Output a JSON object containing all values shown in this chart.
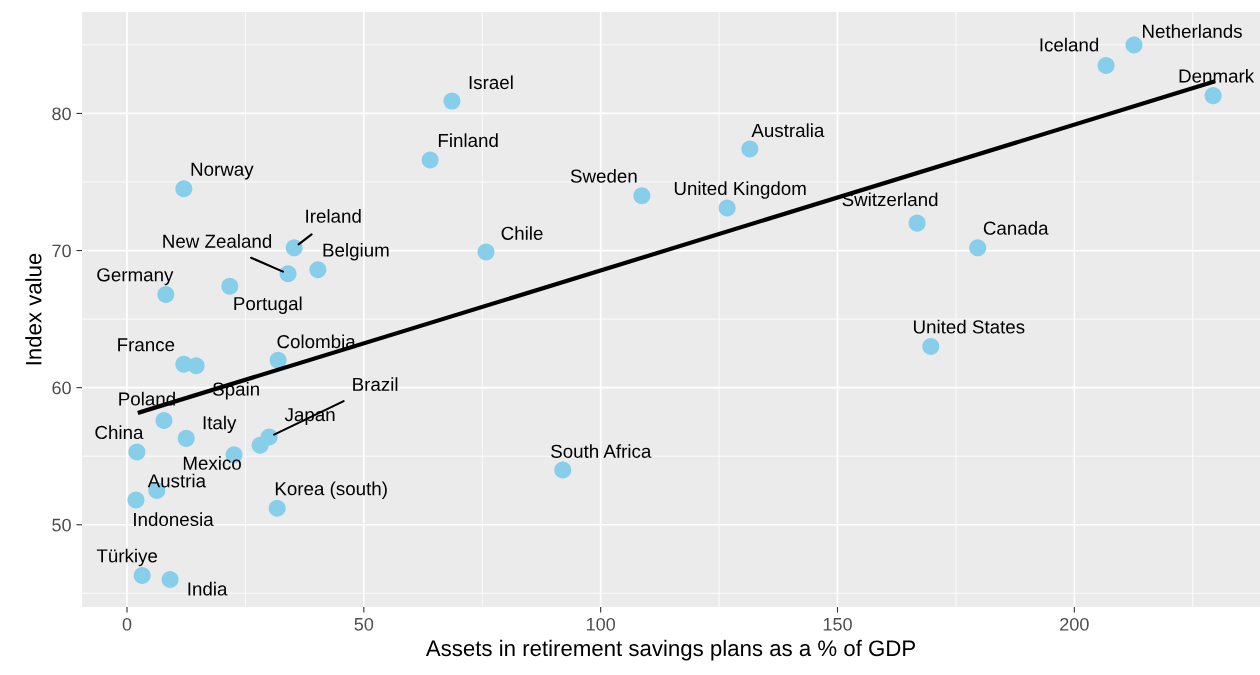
{
  "chart_data": {
    "type": "scatter",
    "xlabel": "Assets in retirement savings plans as a % of GDP",
    "ylabel": "Index value",
    "xlim": [
      -9.5,
      239.2
    ],
    "ylim": [
      44.0,
      87.4
    ],
    "xticks": [
      0,
      50,
      100,
      150,
      200
    ],
    "yticks": [
      50,
      60,
      70,
      80
    ],
    "grid": true,
    "marker": "circle",
    "series": [
      {
        "color": "#87ceeb",
        "x": [
          212.6,
          206.7,
          229.3,
          68.6,
          131.5,
          64.0,
          12.0,
          108.7,
          126.7,
          166.8,
          35.3,
          179.6,
          75.8,
          34.0,
          40.3,
          21.7,
          8.2,
          169.7,
          31.9,
          12.0,
          14.6,
          7.8,
          12.5,
          30.0,
          28.1,
          2.1,
          22.6,
          92.0,
          6.3,
          1.9,
          31.7,
          3.2,
          9.1
        ],
        "values": [
          85.0,
          83.5,
          81.3,
          80.9,
          77.4,
          76.6,
          74.5,
          74.0,
          73.1,
          72.0,
          70.2,
          70.2,
          69.9,
          68.3,
          68.6,
          67.4,
          66.8,
          63.0,
          62.0,
          61.7,
          61.6,
          57.6,
          56.3,
          56.4,
          55.8,
          55.3,
          55.1,
          54.0,
          52.5,
          51.8,
          51.2,
          46.3,
          46.0
        ]
      },
      {
        "type": "line",
        "marker": "none",
        "color": "#000000",
        "x": [
          2.7,
          229.3
        ],
        "values": [
          58.2,
          82.3
        ]
      }
    ],
    "annotations": [
      {
        "text": "Netherlands",
        "x": 212.6,
        "y": 85.0
      },
      {
        "text": "Iceland",
        "x": 206.7,
        "y": 83.5
      },
      {
        "text": "Denmark",
        "x": 229.3,
        "y": 81.3
      },
      {
        "text": "Israel",
        "x": 68.6,
        "y": 80.9
      },
      {
        "text": "Australia",
        "x": 131.5,
        "y": 77.4
      },
      {
        "text": "Finland",
        "x": 64.0,
        "y": 76.6
      },
      {
        "text": "Norway",
        "x": 12.0,
        "y": 74.5
      },
      {
        "text": "Sweden",
        "x": 108.7,
        "y": 74.0
      },
      {
        "text": "United Kingdom",
        "x": 126.7,
        "y": 73.1
      },
      {
        "text": "Switzerland",
        "x": 166.8,
        "y": 72.0
      },
      {
        "text": "Ireland",
        "x": 35.3,
        "y": 70.2
      },
      {
        "text": "Canada",
        "x": 179.6,
        "y": 70.2
      },
      {
        "text": "Chile",
        "x": 75.8,
        "y": 69.9
      },
      {
        "text": "New Zealand",
        "x": 34.0,
        "y": 68.3
      },
      {
        "text": "Belgium",
        "x": 40.3,
        "y": 68.6
      },
      {
        "text": "Portugal",
        "x": 21.7,
        "y": 67.4
      },
      {
        "text": "Germany",
        "x": 8.2,
        "y": 66.8
      },
      {
        "text": "United States",
        "x": 169.7,
        "y": 63.0
      },
      {
        "text": "Colombia",
        "x": 31.9,
        "y": 62.0
      },
      {
        "text": "France",
        "x": 12.0,
        "y": 61.7
      },
      {
        "text": "Spain",
        "x": 14.6,
        "y": 61.6
      },
      {
        "text": "Poland",
        "x": 7.8,
        "y": 57.6
      },
      {
        "text": "Italy",
        "x": 12.5,
        "y": 56.3
      },
      {
        "text": "Brazil",
        "x": 30.0,
        "y": 56.4
      },
      {
        "text": "Japan",
        "x": 28.1,
        "y": 55.8
      },
      {
        "text": "China",
        "x": 2.1,
        "y": 55.3
      },
      {
        "text": "Mexico",
        "x": 22.6,
        "y": 55.1
      },
      {
        "text": "South Africa",
        "x": 92.0,
        "y": 54.0
      },
      {
        "text": "Austria",
        "x": 6.3,
        "y": 52.5
      },
      {
        "text": "Indonesia",
        "x": 1.9,
        "y": 51.8
      },
      {
        "text": "Korea (south)",
        "x": 31.7,
        "y": 51.2
      },
      {
        "text": "Türkiye",
        "x": 3.2,
        "y": 46.3
      },
      {
        "text": "India",
        "x": 9.1,
        "y": 46.0
      }
    ]
  }
}
